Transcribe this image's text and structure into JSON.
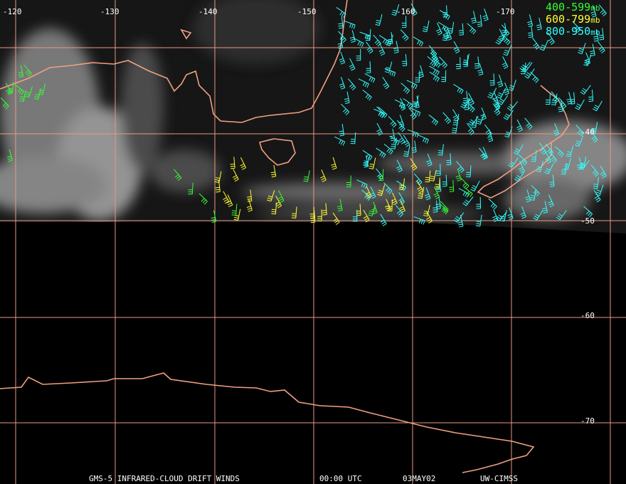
{
  "map": {
    "longitude_labels": [
      "-120",
      "-130",
      "-140",
      "-150",
      "-160",
      "-170"
    ],
    "latitude_labels": [
      "-40",
      "-50",
      "-60",
      "-70"
    ],
    "legend": [
      {
        "range": "400-599",
        "unit": "mb",
        "color": "#33ff33"
      },
      {
        "range": "600-799",
        "unit": "mb",
        "color": "#ffff33"
      },
      {
        "range": "800-950",
        "unit": "mb",
        "color": "#33ffff"
      }
    ],
    "footer": [
      "GMS-5 INFRARED-CLOUD DRIFT WINDS",
      "00:00 UTC",
      "03MAY02",
      "UW-CIMSS"
    ]
  }
}
